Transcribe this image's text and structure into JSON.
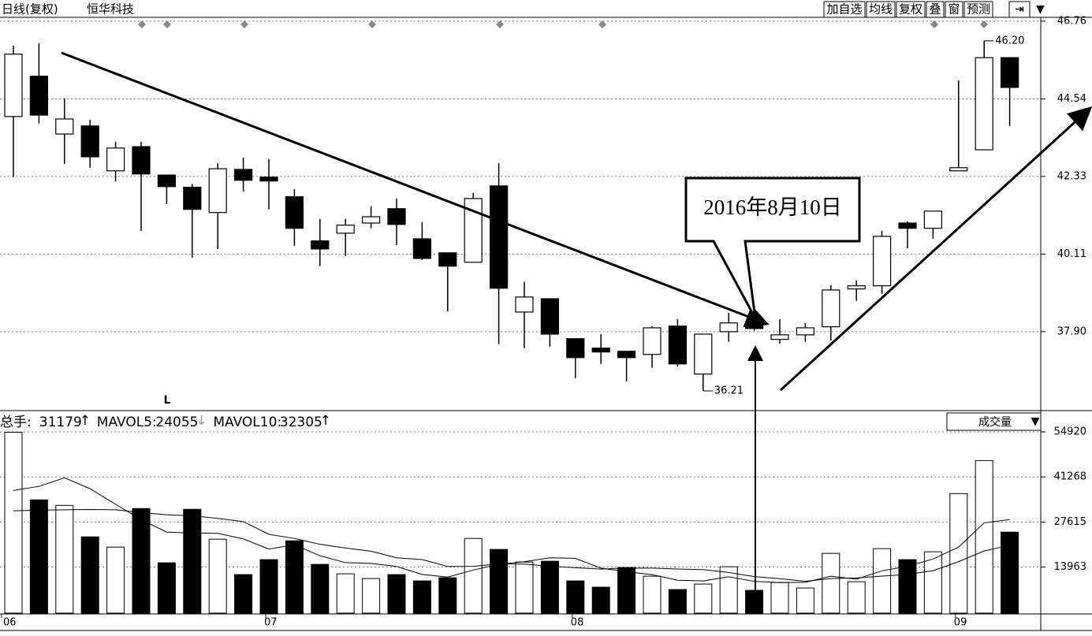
{
  "header": {
    "title": "日线(复权)",
    "stock": "恒华科技",
    "buttons": [
      "加自选",
      "均线",
      "复权",
      "叠",
      "窗",
      "预测"
    ]
  },
  "chart_data": [
    {
      "type": "candlestick",
      "categories": [
        "06",
        null,
        null,
        null,
        null,
        null,
        null,
        null,
        null,
        null,
        "07",
        null,
        null,
        null,
        null,
        null,
        null,
        null,
        null,
        null,
        null,
        null,
        "08",
        null,
        null,
        null,
        null,
        null,
        null,
        null,
        null,
        null,
        null,
        null,
        null,
        null,
        null,
        "09",
        null,
        null
      ],
      "open": [
        44.04,
        45.19,
        43.54,
        43.77,
        42.49,
        43.18,
        42.37,
        42.02,
        41.3,
        42.53,
        42.31,
        41.75,
        40.49,
        40.71,
        41.0,
        41.41,
        40.55,
        40.15,
        39.88,
        42.06,
        38.46,
        38.84,
        37.7,
        37.43,
        37.34,
        37.25,
        38.06,
        36.69,
        37.9,
        38.08,
        37.68,
        37.81,
        38.04,
        39.12,
        39.21,
        41.0,
        40.85,
        42.49,
        43.09,
        45.72
      ],
      "high": [
        46.06,
        46.13,
        44.56,
        43.95,
        43.32,
        43.32,
        42.37,
        42.11,
        42.71,
        42.87,
        42.82,
        41.97,
        41.12,
        41.12,
        41.48,
        41.7,
        41.03,
        40.15,
        41.86,
        42.71,
        39.32,
        38.84,
        37.7,
        37.83,
        37.34,
        38.06,
        38.26,
        37.83,
        38.44,
        38.37,
        38.26,
        38.15,
        39.23,
        39.36,
        40.78,
        41.05,
        41.34,
        45.07,
        46.2,
        45.72
      ],
      "low": [
        42.31,
        43.84,
        42.69,
        42.58,
        42.19,
        40.78,
        41.54,
        40.01,
        40.26,
        41.9,
        41.39,
        40.35,
        39.77,
        40.06,
        40.85,
        40.37,
        39.95,
        38.48,
        39.88,
        37.54,
        37.43,
        37.47,
        36.57,
        36.98,
        36.48,
        36.87,
        36.91,
        36.21,
        37.61,
        37.92,
        37.56,
        37.61,
        37.65,
        38.78,
        38.98,
        40.28,
        40.55,
        42.49,
        43.09,
        43.77
      ],
      "close": [
        45.82,
        44.08,
        43.97,
        42.89,
        43.14,
        42.4,
        42.04,
        41.39,
        42.55,
        42.22,
        42.2,
        40.85,
        40.26,
        40.94,
        41.18,
        40.96,
        39.99,
        39.77,
        41.7,
        39.14,
        38.89,
        37.83,
        37.16,
        37.32,
        37.16,
        38.01,
        36.98,
        37.83,
        38.15,
        37.99,
        37.81,
        38.01,
        39.09,
        39.21,
        40.62,
        40.85,
        41.34,
        42.58,
        45.72,
        44.87
      ],
      "up_color": "#ffffff",
      "down_color": "#000000",
      "ylim": [
        35.67,
        46.87
      ],
      "yticks": [
        46.76,
        44.54,
        42.33,
        40.11,
        {
          "value": 37.9,
          "label": "37.90"
        }
      ],
      "grid": true,
      "annotation": "2016年8月10日",
      "marker": "L",
      "high_label": {
        "value": 46.2,
        "label": "46.20"
      },
      "low_label": 36.21
    },
    {
      "type": "bar",
      "indicator": "成交量",
      "series": [
        {
          "name": "总手:",
          "current": 31179,
          "trend": "↑",
          "color": "#000000",
          "values": [
            54809,
            34315,
            32647,
            23115,
            20017,
            31694,
            15251,
            31456,
            22400,
            11677,
            16204,
            21924,
            14775,
            11915,
            10485,
            11677,
            9770,
            10724,
            22639,
            19302,
            15490,
            15728,
            9770,
            7864,
            13821,
            11200,
            7149,
            8817,
            14060,
            6911,
            9294,
            7626,
            18111,
            9532,
            19541,
            16204,
            18587,
            36222,
            46230,
            24545
          ]
        },
        {
          "name": "MAVOL5:",
          "current": 24055,
          "trend": "↓",
          "color": "#000000",
          "values": [
            37200,
            38400,
            41000,
            37700,
            32981,
            28358,
            24545,
            24307,
            24164,
            22496,
            19398,
            20732,
            17396,
            15299,
            15061,
            14155,
            11724,
            10914,
            13059,
            14822,
            15585,
            16777,
            16586,
            13631,
            12535,
            11677,
            9961,
            9770,
            11009,
            9627,
            9246,
            9342,
            11200,
            10295,
            12821,
            14203,
            16395,
            20017,
            27357,
            28358
          ]
        },
        {
          "name": "MAVOL10:",
          "current": 32305,
          "trend": "↑",
          "color": "#000000",
          "values": [
            31000,
            31200,
            31300,
            31400,
            31300,
            30500,
            29800,
            29500,
            28700,
            27738,
            23878,
            22639,
            20851,
            19731,
            18778,
            16776,
            16228,
            14155,
            14179,
            14942,
            14870,
            14251,
            13750,
            13345,
            13679,
            13631,
            13369,
            13178,
            12320,
            11081,
            10461,
            9651,
            10485,
            10652,
            11224,
            11725,
            12868,
            15609,
            18826,
            20589
          ]
        }
      ],
      "ylim": [
        0,
        54920
      ],
      "yticks": [
        54920,
        41268,
        27615,
        13963
      ]
    }
  ]
}
